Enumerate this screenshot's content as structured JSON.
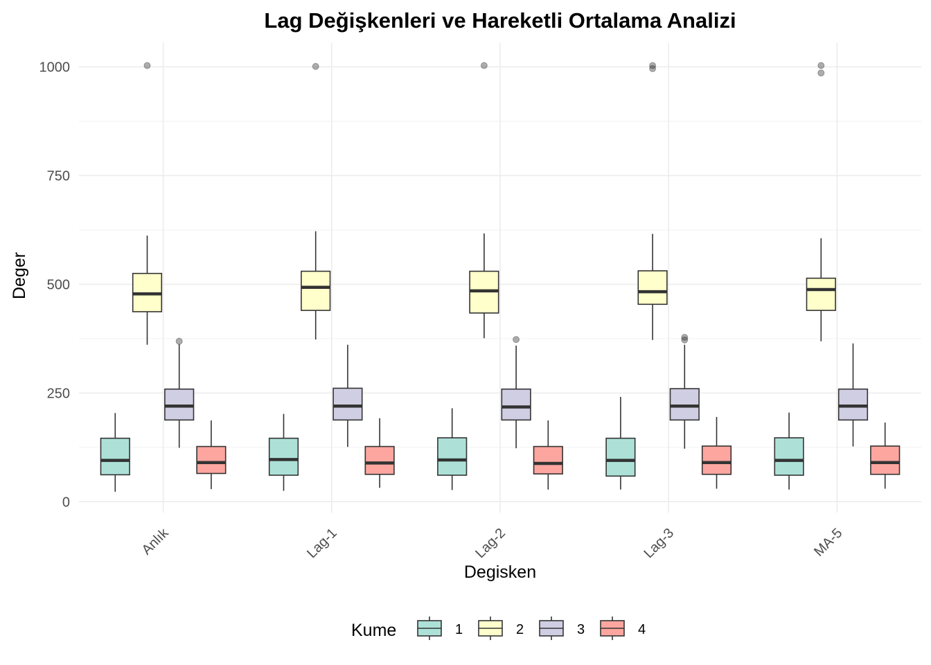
{
  "chart_data": {
    "type": "boxplot",
    "title": "Lag Değişkenleri ve Hareketli Ortalama Analizi",
    "xlabel": "Degisken",
    "ylabel": "Deger",
    "categories": [
      "Anlık",
      "Lag-1",
      "Lag-2",
      "Lag-3",
      "MA-5"
    ],
    "ylim": [
      -25,
      1055
    ],
    "yticks": [
      0,
      250,
      500,
      750,
      1000
    ],
    "ytick_labels": [
      "0",
      "250",
      "500",
      "750",
      "1000"
    ],
    "grid": true,
    "legend": {
      "title": "Kume",
      "position": "bottom"
    },
    "series": [
      {
        "name": "1",
        "color": "#ADE1D8",
        "boxes": [
          {
            "whisker_low": 23,
            "q1": 62,
            "median": 95,
            "q3": 146,
            "whisker_high": 204,
            "outliers": []
          },
          {
            "whisker_low": 25,
            "q1": 61,
            "median": 97,
            "q3": 146,
            "whisker_high": 202,
            "outliers": []
          },
          {
            "whisker_low": 27,
            "q1": 61,
            "median": 96,
            "q3": 147,
            "whisker_high": 215,
            "outliers": []
          },
          {
            "whisker_low": 28,
            "q1": 59,
            "median": 95,
            "q3": 146,
            "whisker_high": 241,
            "outliers": []
          },
          {
            "whisker_low": 28,
            "q1": 61,
            "median": 95,
            "q3": 147,
            "whisker_high": 205,
            "outliers": []
          }
        ]
      },
      {
        "name": "2",
        "color": "#FFFFCC",
        "boxes": [
          {
            "whisker_low": 361,
            "q1": 437,
            "median": 478,
            "q3": 525,
            "whisker_high": 612,
            "outliers": [
              1003
            ]
          },
          {
            "whisker_low": 373,
            "q1": 440,
            "median": 493,
            "q3": 530,
            "whisker_high": 622,
            "outliers": [
              1001
            ]
          },
          {
            "whisker_low": 376,
            "q1": 434,
            "median": 485,
            "q3": 530,
            "whisker_high": 617,
            "outliers": [
              1003
            ]
          },
          {
            "whisker_low": 372,
            "q1": 454,
            "median": 483,
            "q3": 531,
            "whisker_high": 616,
            "outliers": [
              1003,
              996
            ]
          },
          {
            "whisker_low": 369,
            "q1": 440,
            "median": 488,
            "q3": 514,
            "whisker_high": 606,
            "outliers": [
              1003,
              986
            ]
          }
        ]
      },
      {
        "name": "3",
        "color": "#D0CEE2",
        "boxes": [
          {
            "whisker_low": 124,
            "q1": 188,
            "median": 220,
            "q3": 259,
            "whisker_high": 362,
            "outliers": [
              369
            ]
          },
          {
            "whisker_low": 126,
            "q1": 188,
            "median": 220,
            "q3": 261,
            "whisker_high": 361,
            "outliers": []
          },
          {
            "whisker_low": 123,
            "q1": 188,
            "median": 218,
            "q3": 259,
            "whisker_high": 359,
            "outliers": [
              373
            ]
          },
          {
            "whisker_low": 122,
            "q1": 188,
            "median": 220,
            "q3": 260,
            "whisker_high": 361,
            "outliers": [
              378,
              372
            ]
          },
          {
            "whisker_low": 127,
            "q1": 188,
            "median": 220,
            "q3": 259,
            "whisker_high": 364,
            "outliers": []
          }
        ]
      },
      {
        "name": "4",
        "color": "#FCA69F",
        "boxes": [
          {
            "whisker_low": 29,
            "q1": 65,
            "median": 90,
            "q3": 127,
            "whisker_high": 187,
            "outliers": []
          },
          {
            "whisker_low": 32,
            "q1": 63,
            "median": 89,
            "q3": 127,
            "whisker_high": 192,
            "outliers": []
          },
          {
            "whisker_low": 28,
            "q1": 64,
            "median": 88,
            "q3": 127,
            "whisker_high": 187,
            "outliers": []
          },
          {
            "whisker_low": 30,
            "q1": 63,
            "median": 90,
            "q3": 128,
            "whisker_high": 195,
            "outliers": []
          },
          {
            "whisker_low": 30,
            "q1": 63,
            "median": 90,
            "q3": 128,
            "whisker_high": 182,
            "outliers": []
          }
        ]
      }
    ]
  }
}
